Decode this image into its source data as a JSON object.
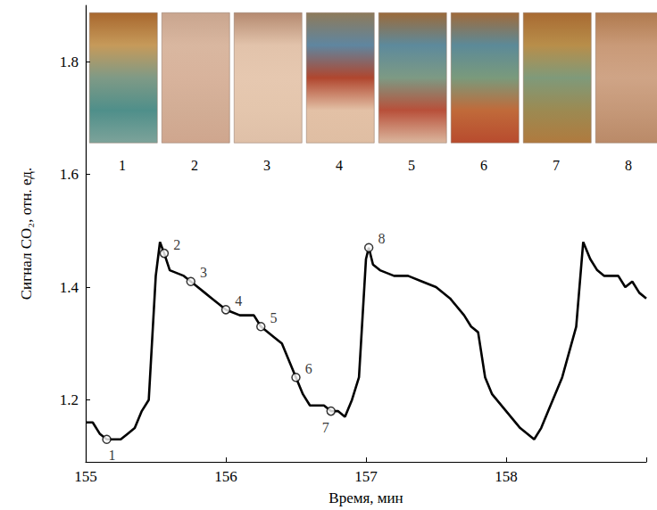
{
  "chart_data": {
    "type": "line",
    "x_label": "Время, мин",
    "y_label": "Сигнал CO₂, отн. ед.",
    "color": "#000000",
    "x": [
      155.0,
      155.05,
      155.1,
      155.15,
      155.25,
      155.3,
      155.35,
      155.4,
      155.45,
      155.5,
      155.53,
      155.56,
      155.6,
      155.7,
      155.75,
      155.8,
      155.85,
      155.9,
      156.0,
      156.1,
      156.2,
      156.25,
      156.35,
      156.4,
      156.5,
      156.55,
      156.6,
      156.7,
      156.75,
      156.8,
      156.85,
      156.9,
      156.95,
      157.0,
      157.02,
      157.05,
      157.1,
      157.2,
      157.3,
      157.4,
      157.5,
      157.6,
      157.7,
      157.75,
      157.8,
      157.85,
      157.9,
      158.0,
      158.1,
      158.2,
      158.25,
      158.3,
      158.4,
      158.5,
      158.55,
      158.6,
      158.65,
      158.7,
      158.8,
      158.85,
      158.9,
      158.95,
      159.0
    ],
    "values": [
      1.16,
      1.16,
      1.14,
      1.13,
      1.13,
      1.14,
      1.15,
      1.18,
      1.2,
      1.42,
      1.48,
      1.46,
      1.43,
      1.42,
      1.41,
      1.4,
      1.39,
      1.38,
      1.36,
      1.35,
      1.35,
      1.33,
      1.31,
      1.3,
      1.24,
      1.21,
      1.19,
      1.19,
      1.18,
      1.18,
      1.17,
      1.2,
      1.24,
      1.45,
      1.47,
      1.44,
      1.43,
      1.42,
      1.42,
      1.41,
      1.4,
      1.38,
      1.35,
      1.33,
      1.32,
      1.24,
      1.21,
      1.18,
      1.15,
      1.13,
      1.15,
      1.18,
      1.24,
      1.33,
      1.48,
      1.45,
      1.43,
      1.42,
      1.42,
      1.4,
      1.41,
      1.39,
      1.38
    ],
    "markers": [
      {
        "label": "1",
        "x": 155.15,
        "y": 1.13
      },
      {
        "label": "2",
        "x": 155.56,
        "y": 1.46
      },
      {
        "label": "3",
        "x": 155.75,
        "y": 1.41
      },
      {
        "label": "4",
        "x": 156.0,
        "y": 1.36
      },
      {
        "label": "5",
        "x": 156.25,
        "y": 1.33
      },
      {
        "label": "6",
        "x": 156.5,
        "y": 1.24
      },
      {
        "label": "7",
        "x": 156.75,
        "y": 1.18
      },
      {
        "label": "8",
        "x": 157.02,
        "y": 1.47
      }
    ],
    "photo_labels": [
      "1",
      "2",
      "3",
      "4",
      "5",
      "6",
      "7",
      "8"
    ],
    "xlim": [
      155,
      159
    ],
    "xticks": [
      155,
      156,
      157,
      158
    ],
    "ylim": [
      1.09,
      1.9
    ],
    "yticks": [
      1.2,
      1.4,
      1.6,
      1.8
    ],
    "grid": false
  }
}
